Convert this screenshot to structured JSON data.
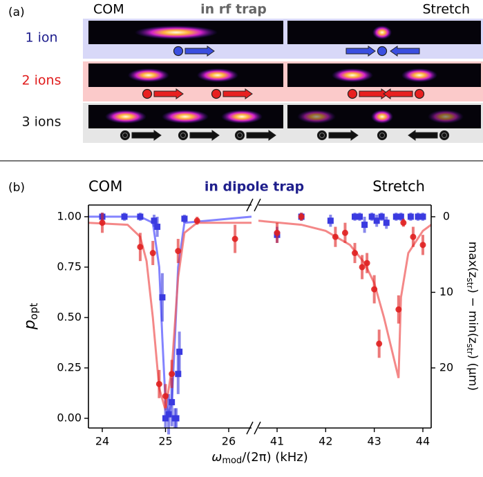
{
  "panel_a": {
    "label": "(a)",
    "left_title": "COM",
    "center_title": "in rf trap",
    "right_title": "Stretch",
    "rows": [
      {
        "label": "1 ion",
        "color": "#1c1c8c",
        "background": "#d8d8f8",
        "ion_color": "#3b4fe0"
      },
      {
        "label": "2 ions",
        "color": "#e01b1b",
        "background": "#fbcaca",
        "ion_color": "#e82020"
      },
      {
        "label": "3 ions",
        "color": "#111111",
        "background": "#e6e6e6",
        "ion_color": "#111111"
      }
    ]
  },
  "chart_data": {
    "type": "scatter",
    "label": "(b)",
    "left_title": "COM",
    "title": "in dipole trap",
    "right_title": "Stretch",
    "ylabel": {
      "main": "p",
      "sub": "opt"
    },
    "xlabel": {
      "symbol": "ω",
      "sub": "mod",
      "rest": "/(2π) (kHz)"
    },
    "y2label": [
      "max(z",
      "str",
      ") − min(z",
      "str",
      ") (μm)"
    ],
    "xsegments": [
      {
        "xlim": [
          23.781,
          26.361
        ],
        "xticks": [
          24,
          25,
          26
        ]
      },
      {
        "xlim": [
          40.616,
          44.171
        ],
        "xticks": [
          41,
          42,
          43,
          44
        ]
      }
    ],
    "ylim": [
      -0.048,
      1.058
    ],
    "yticks": [
      {
        "value": 0,
        "label": "0.00"
      },
      {
        "value": 0.25,
        "label": "0.25"
      },
      {
        "value": 0.5,
        "label": "0.50"
      },
      {
        "value": 0.75,
        "label": "0.75"
      },
      {
        "value": 1,
        "label": "1.00"
      }
    ],
    "y2lim": [
      27.95,
      -1.55
    ],
    "y2ticks": [
      0,
      10,
      20
    ],
    "series": [
      {
        "color": "#3a3ae0",
        "marker": "square",
        "x": [
          24.0,
          24.35,
          24.6,
          24.82,
          24.87,
          24.95,
          25.0,
          25.05,
          25.1,
          25.15,
          25.17,
          25.2,
          25.22,
          25.3,
          41.0,
          41.5,
          42.1,
          42.6,
          42.7,
          42.8,
          42.95,
          43.05,
          43.15,
          43.25,
          43.45,
          43.55,
          43.75,
          43.9,
          44.0
        ],
        "values": [
          1.0,
          1.0,
          1.0,
          0.98,
          0.95,
          0.6,
          0.0,
          0.02,
          0.08,
          0.0,
          0.0,
          0.22,
          0.33,
          0.99,
          0.91,
          1.0,
          0.98,
          1.0,
          1.0,
          0.96,
          1.0,
          0.98,
          1.0,
          0.97,
          1.0,
          1.0,
          1.0,
          1.0,
          1.0
        ],
        "errors": [
          0.02,
          0.02,
          0.02,
          0.03,
          0.05,
          0.12,
          0.05,
          0.1,
          0.12,
          0.05,
          0.05,
          0.1,
          0.1,
          0.02,
          0.04,
          0.02,
          0.03,
          0.02,
          0.02,
          0.04,
          0.02,
          0.03,
          0.02,
          0.03,
          0.02,
          0.02,
          0.02,
          0.02,
          0.02
        ]
      },
      {
        "color": "#e02020",
        "marker": "circle",
        "x": [
          24.0,
          24.6,
          24.8,
          24.9,
          25.0,
          25.1,
          25.2,
          25.5,
          26.1,
          41.0,
          41.5,
          42.2,
          42.4,
          42.6,
          42.75,
          42.85,
          43.0,
          43.1,
          43.5,
          43.6,
          43.8,
          44.0
        ],
        "values": [
          0.97,
          0.85,
          0.82,
          0.17,
          0.11,
          0.22,
          0.83,
          0.98,
          0.89,
          0.92,
          1.0,
          0.9,
          0.92,
          0.82,
          0.75,
          0.77,
          0.64,
          0.37,
          0.54,
          0.97,
          0.9,
          0.86
        ],
        "errors": [
          0.05,
          0.07,
          0.06,
          0.07,
          0.06,
          0.07,
          0.06,
          0.02,
          0.07,
          0.05,
          0.02,
          0.05,
          0.05,
          0.05,
          0.06,
          0.05,
          0.07,
          0.07,
          0.07,
          0.02,
          0.05,
          0.05
        ]
      }
    ],
    "fits": [
      {
        "color": "#5a5aff",
        "x": [
          23.781,
          24.6,
          24.8,
          24.9,
          24.95,
          25.0,
          25.05,
          25.1,
          25.15,
          25.2,
          25.3,
          26.361
        ],
        "values": [
          1,
          1,
          0.97,
          0.75,
          0.4,
          0.08,
          0.02,
          0.08,
          0.4,
          0.75,
          0.97,
          1
        ]
      },
      {
        "color": "#f06060",
        "x": [
          23.781,
          24.4,
          24.6,
          24.7,
          24.8,
          24.9,
          25.0,
          25.1,
          25.2,
          25.3,
          25.5,
          26.361
        ],
        "values": [
          0.97,
          0.96,
          0.9,
          0.78,
          0.5,
          0.15,
          0.04,
          0.25,
          0.7,
          0.92,
          0.97,
          0.97
        ]
      },
      {
        "color": "#f06060",
        "x": [
          40.616,
          41.5,
          42.0,
          42.5,
          42.8,
          43.0,
          43.2,
          43.4,
          43.5,
          43.55,
          43.7,
          44.0,
          44.171
        ],
        "values": [
          0.98,
          0.96,
          0.93,
          0.86,
          0.77,
          0.67,
          0.5,
          0.3,
          0.2,
          0.6,
          0.82,
          0.93,
          0.96
        ]
      }
    ]
  }
}
